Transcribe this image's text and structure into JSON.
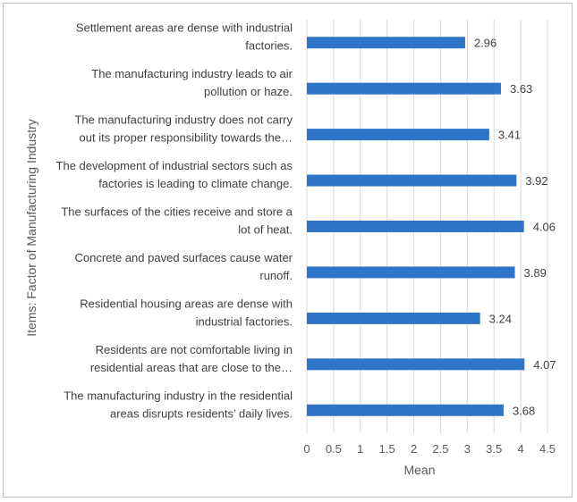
{
  "chart_data": {
    "type": "bar",
    "orientation": "horizontal",
    "categories": [
      [
        "Settlement areas are dense with industrial",
        "factories."
      ],
      [
        "The manufacturing industry leads to air",
        "pollution or haze."
      ],
      [
        "The manufacturing industry does not carry",
        "out its proper responsibility towards the…"
      ],
      [
        "The development of industrial sectors such as",
        "factories is leading to climate change."
      ],
      [
        "The surfaces of the cities receive and store a",
        "lot of heat."
      ],
      [
        "Concrete and paved surfaces cause water",
        "runoff."
      ],
      [
        "Residential housing areas are dense with",
        "industrial factories."
      ],
      [
        "Residents are not comfortable living in",
        "residential areas that are close to the…"
      ],
      [
        "The manufacturing industry in the residential",
        "areas disrupts residents’ daily lives."
      ]
    ],
    "values": [
      2.96,
      3.63,
      3.41,
      3.92,
      4.06,
      3.89,
      3.24,
      4.07,
      3.68
    ],
    "value_labels": [
      "2.96",
      "3.63",
      "3.41",
      "3.92",
      "4.06",
      "3.89",
      "3.24",
      "4.07",
      "3.68"
    ],
    "xlim": [
      0,
      4.5
    ],
    "xticks": [
      0,
      0.5,
      1,
      1.5,
      2,
      2.5,
      3,
      3.5,
      4,
      4.5
    ],
    "xtick_labels": [
      "0",
      "0.5",
      "1",
      "1.5",
      "2",
      "2.5",
      "3",
      "3.5",
      "4",
      "4.5"
    ],
    "xlabel": "Mean",
    "ylabel": "Items: Factor of Manufacturing Industry",
    "bar_color": "#2e75c9",
    "grid": true,
    "legend": "none"
  }
}
